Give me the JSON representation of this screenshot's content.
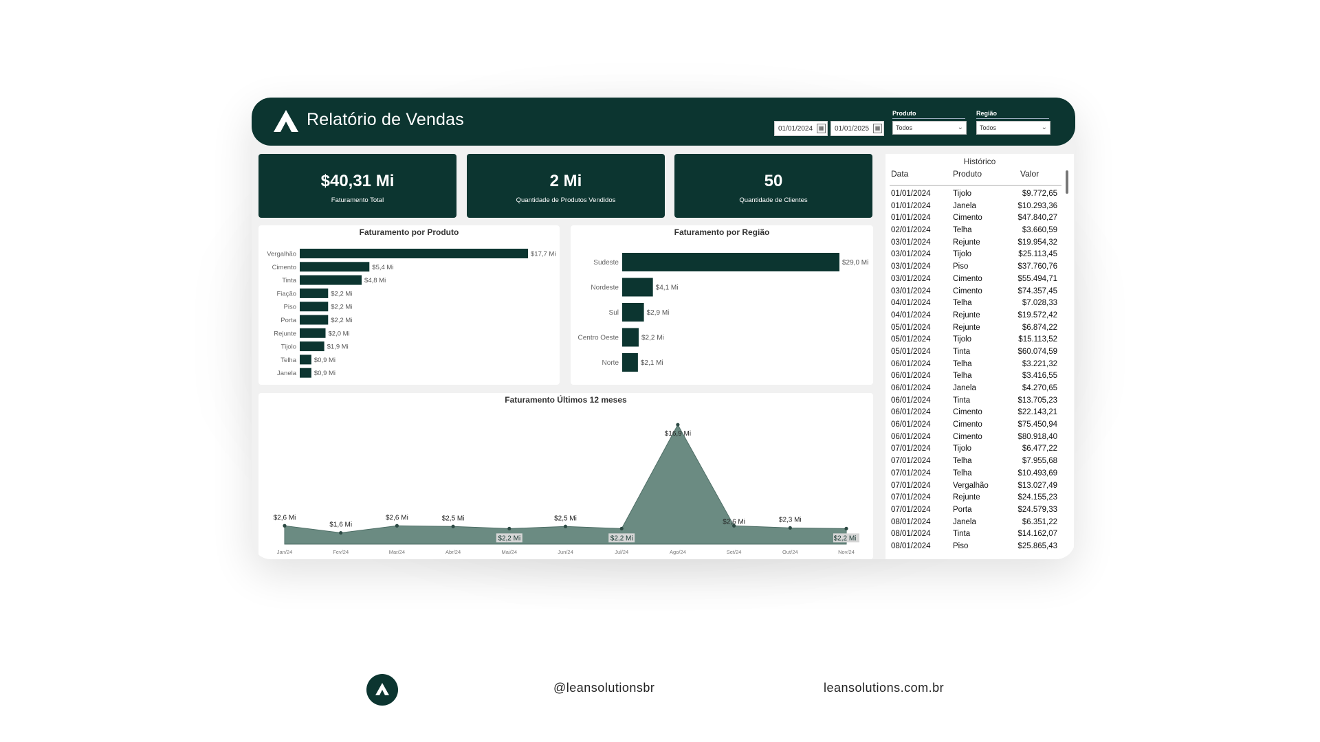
{
  "header": {
    "title": "Relatório de Vendas",
    "date_start": "01/01/2024",
    "date_end": "01/01/2025",
    "filters": [
      {
        "label": "Produto",
        "value": "Todos"
      },
      {
        "label": "Região",
        "value": "Todos"
      }
    ]
  },
  "kpis": [
    {
      "value": "$40,31 Mi",
      "label": "Faturamento Total"
    },
    {
      "value": "2 Mi",
      "label": "Quantidade de Produtos Vendidos"
    },
    {
      "value": "50",
      "label": "Quantidade de Clientes"
    }
  ],
  "colors": {
    "dark": "#0c3530",
    "area": "#6b8b82"
  },
  "chart_data": [
    {
      "type": "bar",
      "title": "Faturamento por Produto",
      "categories": [
        "Vergalhão",
        "Cimento",
        "Tinta",
        "Fiação",
        "Piso",
        "Porta",
        "Rejunte",
        "Tijolo",
        "Telha",
        "Janela"
      ],
      "values": [
        17.7,
        5.4,
        4.8,
        2.2,
        2.2,
        2.2,
        2.0,
        1.9,
        0.9,
        0.9
      ],
      "labels": [
        "$17,7 Mi",
        "$5,4 Mi",
        "$4,8 Mi",
        "$2,2 Mi",
        "$2,2 Mi",
        "$2,2 Mi",
        "$2,0 Mi",
        "$1,9 Mi",
        "$0,9 Mi",
        "$0,9 Mi"
      ]
    },
    {
      "type": "bar",
      "title": "Faturamento por Região",
      "categories": [
        "Sudeste",
        "Nordeste",
        "Sul",
        "Centro Oeste",
        "Norte"
      ],
      "values": [
        29.0,
        4.1,
        2.9,
        2.2,
        2.1
      ],
      "labels": [
        "$29,0 Mi",
        "$4,1 Mi",
        "$2,9 Mi",
        "$2,2 Mi",
        "$2,1 Mi"
      ]
    },
    {
      "type": "area",
      "title": "Faturamento Últimos 12 meses",
      "categories": [
        "Jan/24",
        "Fev/24",
        "Mar/24",
        "Abr/24",
        "Mai/24",
        "Jun/24",
        "Jul/24",
        "Ago/24",
        "Set/24",
        "Out/24",
        "Nov/24"
      ],
      "values": [
        2.6,
        1.6,
        2.6,
        2.5,
        2.2,
        2.5,
        2.2,
        16.9,
        2.6,
        2.3,
        2.2
      ],
      "labels": [
        "$2,6 Mi",
        "$1,6 Mi",
        "$2,6 Mi",
        "$2,5 Mi",
        "$2,2 Mi",
        "$2,5 Mi",
        "$2,2 Mi",
        "$16,9 Mi",
        "$2,6 Mi",
        "$2,3 Mi",
        "$2,2 Mi"
      ]
    }
  ],
  "history": {
    "title": "Histórico",
    "columns": [
      "Data",
      "Produto",
      "Valor"
    ],
    "rows": [
      [
        "01/01/2024",
        "Tijolo",
        "$9.772,65"
      ],
      [
        "01/01/2024",
        "Janela",
        "$10.293,36"
      ],
      [
        "01/01/2024",
        "Cimento",
        "$47.840,27"
      ],
      [
        "02/01/2024",
        "Telha",
        "$3.660,59"
      ],
      [
        "03/01/2024",
        "Rejunte",
        "$19.954,32"
      ],
      [
        "03/01/2024",
        "Tijolo",
        "$25.113,45"
      ],
      [
        "03/01/2024",
        "Piso",
        "$37.760,76"
      ],
      [
        "03/01/2024",
        "Cimento",
        "$55.494,71"
      ],
      [
        "03/01/2024",
        "Cimento",
        "$74.357,45"
      ],
      [
        "04/01/2024",
        "Telha",
        "$7.028,33"
      ],
      [
        "04/01/2024",
        "Rejunte",
        "$19.572,42"
      ],
      [
        "05/01/2024",
        "Rejunte",
        "$6.874,22"
      ],
      [
        "05/01/2024",
        "Tijolo",
        "$15.113,52"
      ],
      [
        "05/01/2024",
        "Tinta",
        "$60.074,59"
      ],
      [
        "06/01/2024",
        "Telha",
        "$3.221,32"
      ],
      [
        "06/01/2024",
        "Telha",
        "$3.416,55"
      ],
      [
        "06/01/2024",
        "Janela",
        "$4.270,65"
      ],
      [
        "06/01/2024",
        "Tinta",
        "$13.705,23"
      ],
      [
        "06/01/2024",
        "Cimento",
        "$22.143,21"
      ],
      [
        "06/01/2024",
        "Cimento",
        "$75.450,94"
      ],
      [
        "06/01/2024",
        "Cimento",
        "$80.918,40"
      ],
      [
        "07/01/2024",
        "Tijolo",
        "$6.477,22"
      ],
      [
        "07/01/2024",
        "Telha",
        "$7.955,68"
      ],
      [
        "07/01/2024",
        "Telha",
        "$10.493,69"
      ],
      [
        "07/01/2024",
        "Vergalhão",
        "$13.027,49"
      ],
      [
        "07/01/2024",
        "Rejunte",
        "$24.155,23"
      ],
      [
        "07/01/2024",
        "Porta",
        "$24.579,33"
      ],
      [
        "08/01/2024",
        "Janela",
        "$6.351,22"
      ],
      [
        "08/01/2024",
        "Tinta",
        "$14.162,07"
      ],
      [
        "08/01/2024",
        "Piso",
        "$25.865,43"
      ]
    ]
  },
  "footer": {
    "handle": "@leansolutionsbr",
    "website": "leansolutions.com.br"
  }
}
